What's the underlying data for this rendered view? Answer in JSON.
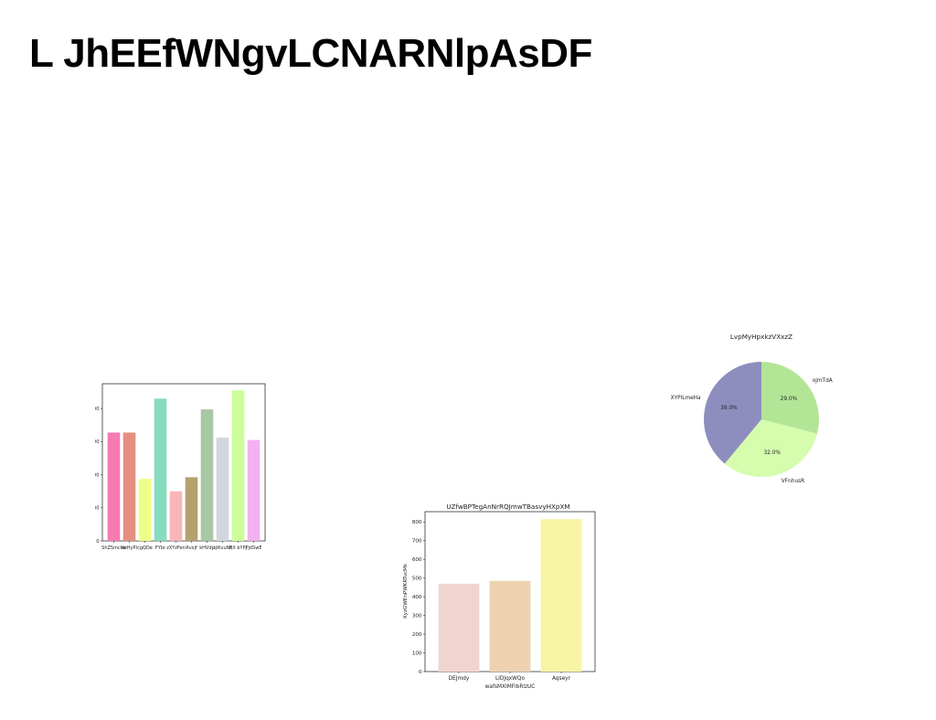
{
  "page": {
    "title": "L JhEEfWNgvLCNARNlpAsDF"
  },
  "chart_data": [
    {
      "type": "bar",
      "title": "",
      "xlabel": "",
      "ylabel": "",
      "categories": [
        "ShZSmcKe",
        "zeHyPl",
        "cgQDe",
        "FYbr",
        "zXYzFen",
        "Rvxjf",
        "kHVdp",
        "qlKvuNt",
        "BX bYPJ",
        "PjdSwE"
      ],
      "values": [
        655,
        655,
        375,
        860,
        300,
        385,
        795,
        625,
        910,
        610
      ],
      "colors": [
        "#f57bb1",
        "#e58f80",
        "#eeff88",
        "#86dcbd",
        "#f7b7b7",
        "#b3a26e",
        "#a8c7a5",
        "#d1d6dd",
        "#ccff99",
        "#f2b1ef"
      ],
      "ylim": [
        0,
        950
      ],
      "yticks": [
        0,
        200,
        400,
        600,
        800
      ]
    },
    {
      "type": "bar",
      "title": "UZfwBPTegAnNrRQJmwTBasvyHXpXM",
      "xlabel": "wafsMXIMFlbRlzUC",
      "ylabel": "XyzGWEnPWKRTucMk",
      "categories": [
        "DEJmdy",
        "LIDJqxWQo",
        "Aqseyr"
      ],
      "values": [
        470,
        485,
        815
      ],
      "colors": [
        "#f1d4d0",
        "#eed2b0",
        "#f7f5a4"
      ],
      "ylim": [
        0,
        855
      ],
      "yticks": [
        0,
        100,
        200,
        300,
        400,
        500,
        600,
        700,
        800
      ]
    },
    {
      "type": "pie",
      "title": "LvpMyHpxkzVXxzZ",
      "slices": [
        {
          "label": "ojmTdA",
          "value": 29.0,
          "pct_label": "29.0%",
          "color": "#b3e597"
        },
        {
          "label": "VFnhusR",
          "value": 32.0,
          "pct_label": "32.0%",
          "color": "#d6fcae"
        },
        {
          "label": "XYPlLmeHa",
          "value": 39.0,
          "pct_label": "39.0%",
          "color": "#8d8ebe"
        }
      ]
    }
  ]
}
